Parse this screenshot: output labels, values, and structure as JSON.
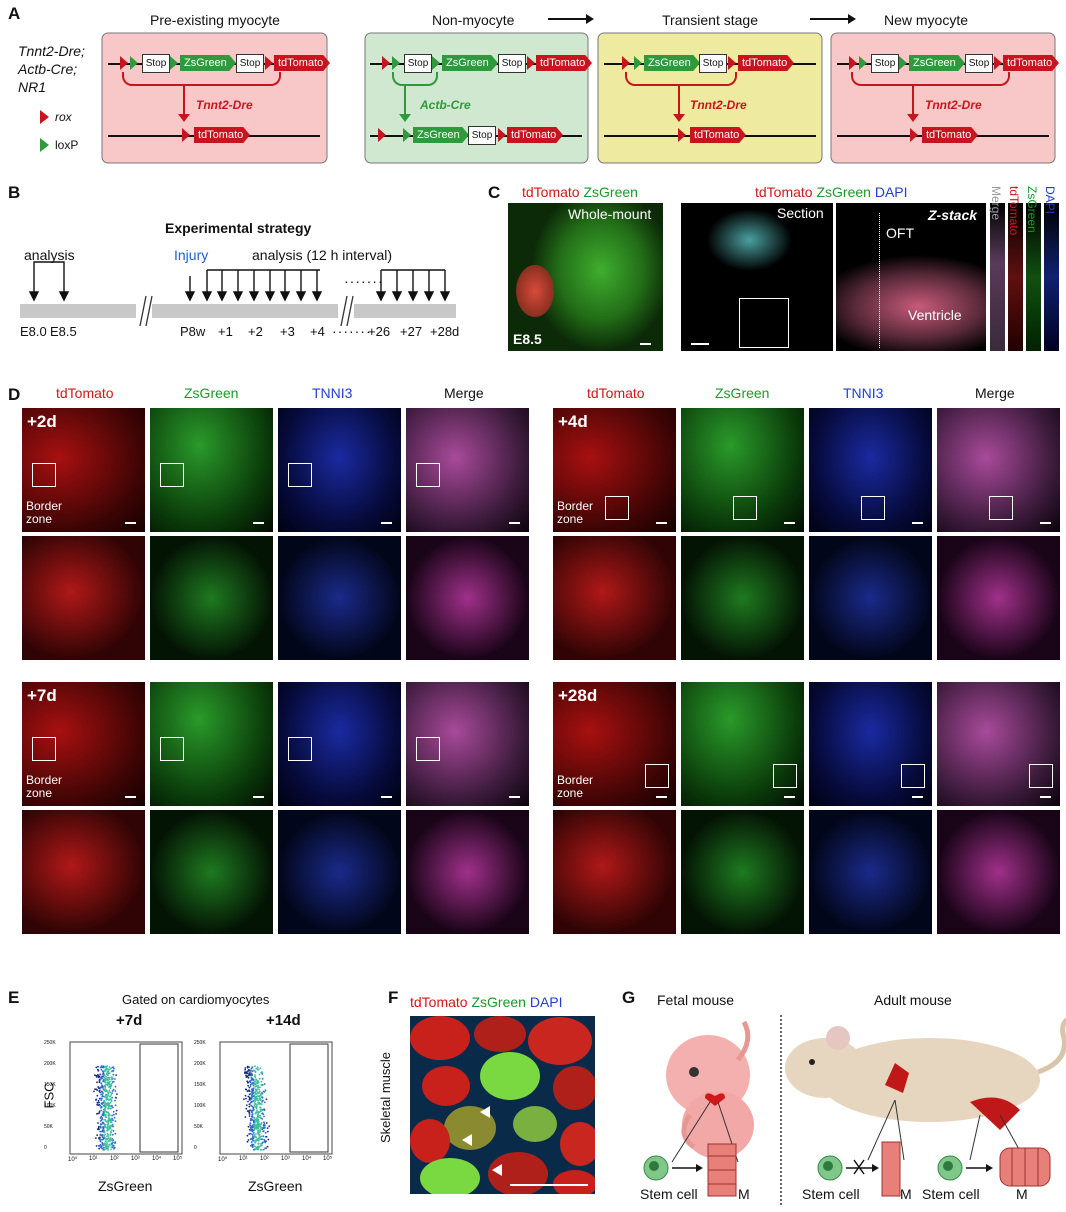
{
  "panels": {
    "A": "A",
    "B": "B",
    "C": "C",
    "D": "D",
    "E": "E",
    "F": "F",
    "G": "G"
  },
  "a": {
    "titles": [
      "Pre-existing myocyte",
      "Non-myocyte",
      "Transient stage",
      "New myocyte"
    ],
    "genotype": [
      "Tnnt2-Dre;",
      "Actb-Cre;",
      "NR1"
    ],
    "legend_rox": "rox",
    "legend_lox": "loxP",
    "stop": "Stop",
    "zsgreen": "ZsGreen",
    "tdtomato": "tdTomato",
    "tnnt2dre": "Tnnt2-Dre",
    "actbcre": "Actb-Cre",
    "colors": {
      "pink": "#f8c8c8",
      "green": "#cfe8cf",
      "yellow": "#eeeaa0",
      "red": "#c8141e",
      "zsg": "#2e9a3c"
    }
  },
  "b": {
    "title": "Experimental strategy",
    "analysis": "analysis",
    "injury": "Injury",
    "analysis_interval": "analysis (12 h interval)",
    "ticks": [
      "E8.0",
      "E8.5",
      "P8w",
      "+1",
      "+2",
      "+3",
      "+4",
      "+26",
      "+27",
      "+28d"
    ],
    "dots": "·······"
  },
  "c": {
    "label_left_red": "tdTomato",
    "label_left_green": "ZsGreen",
    "whole_mount": "Whole-mount",
    "stage": "E8.5",
    "label_right_red": "tdTomato",
    "label_right_green": "ZsGreen",
    "label_right_blue": "DAPI",
    "section": "Section",
    "zstack": "Z-stack",
    "oft": "OFT",
    "ventricle": "Ventricle",
    "strips": [
      "Merge",
      "tdTomato",
      "ZsGreen",
      "DAPI"
    ]
  },
  "d": {
    "cols": [
      "tdTomato",
      "ZsGreen",
      "TNNI3",
      "Merge"
    ],
    "timepoints": [
      "+2d",
      "+4d",
      "+7d",
      "+28d"
    ],
    "border_zone": [
      "Border",
      "zone"
    ]
  },
  "e": {
    "gated": "Gated on cardiomyocytes",
    "plots": [
      "+7d",
      "+14d"
    ],
    "ylabel": "FSC",
    "xlabel": "ZsGreen",
    "yticks": [
      "250K",
      "200K",
      "150K",
      "100K",
      "50K",
      "0"
    ],
    "xticks": [
      "10⁰",
      "10¹",
      "10²",
      "10³",
      "10⁴",
      "10⁵"
    ]
  },
  "f": {
    "label_red": "tdTomato",
    "label_green": "ZsGreen",
    "label_blue": "DAPI",
    "side": "Skeletal muscle"
  },
  "g": {
    "fetal": "Fetal mouse",
    "adult": "Adult mouse",
    "stem_cell": "Stem cell",
    "m": "M"
  }
}
